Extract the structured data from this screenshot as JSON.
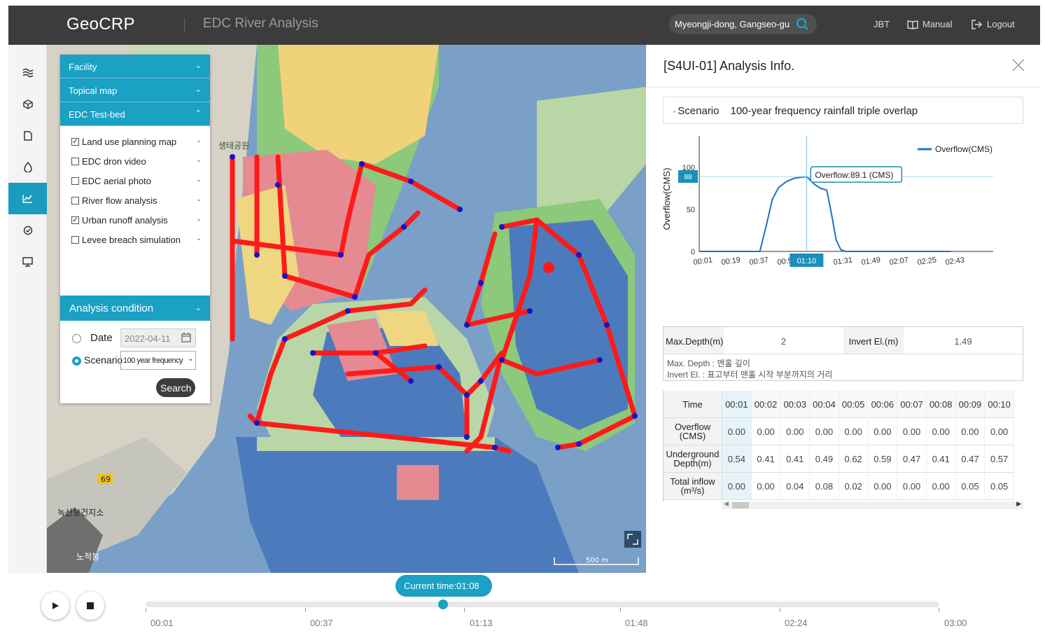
{
  "header": {
    "logo": "GeoCRP",
    "title": "EDC River Analysis",
    "search_value": "Myeongji-dong, Gangseo-gu",
    "user": "JBT",
    "manual": "Manual",
    "logout": "Logout"
  },
  "layers_panel": {
    "sections": [
      "Facility",
      "Topical map",
      "EDC Test-bed"
    ],
    "layers": [
      {
        "label": "Land use planning map",
        "checked": true
      },
      {
        "label": "EDC dron video",
        "checked": false
      },
      {
        "label": "EDC aerial photo",
        "checked": false
      },
      {
        "label": "River flow analysis",
        "checked": false
      },
      {
        "label": "Urban runoff analysis",
        "checked": true
      },
      {
        "label": "Levee breach simulation",
        "checked": false
      }
    ]
  },
  "analysis": {
    "title": "Analysis condition",
    "date_label": "Date",
    "date_value": "2022-04-11",
    "scenario_label": "Scenario",
    "scenario_value": "100 year frequency",
    "selected": "Scenario",
    "search_label": "Search"
  },
  "map": {
    "labels": [
      "생태공원",
      "녹산보건지소",
      "노적봉",
      "69"
    ],
    "scale": "500 m"
  },
  "info": {
    "title": "[S4UI-01] Analysis Info.",
    "scenario_key": "Scenario",
    "scenario_value": "100-year frequency rainfall triple overlap",
    "max_depth_label": "Max.Depth(m)",
    "max_depth_value": "2",
    "invert_label": "Invert El.(m)",
    "invert_value": "1.49",
    "note1": "Max. Depth : 맨홀 깊이",
    "note2": "Invert El. : 표고부터 맨홀 시작 부분까지의 거리"
  },
  "chart_data": {
    "type": "line",
    "title": "",
    "ylabel": "Overflow(CMS)",
    "xlabel": "",
    "legend": "Overflow(CMS)",
    "legend_position": "top-right",
    "ylim": [
      0,
      150
    ],
    "yticks": [
      0,
      50,
      100,
      150
    ],
    "xticks": [
      "00:01",
      "00:19",
      "00:37",
      "00:5",
      "01:10",
      "01:31",
      "01:49",
      "02:07",
      "02:25",
      "02:43"
    ],
    "series": [
      {
        "name": "Overflow(CMS)",
        "color": "#1f72c4",
        "points": [
          [
            1,
            0
          ],
          [
            19,
            0
          ],
          [
            40,
            0
          ],
          [
            44,
            30
          ],
          [
            48,
            62
          ],
          [
            52,
            76
          ],
          [
            57,
            83
          ],
          [
            62,
            87
          ],
          [
            70,
            89.1
          ],
          [
            75,
            80
          ],
          [
            79,
            75
          ],
          [
            83,
            73
          ],
          [
            86,
            45
          ],
          [
            89,
            14
          ],
          [
            92,
            2
          ],
          [
            95,
            0
          ],
          [
            120,
            0
          ],
          [
            163,
            0
          ]
        ]
      }
    ],
    "cursor": {
      "x_label": "01:10",
      "y_label": "88",
      "tooltip": "Overflow:89.1 (CMS)"
    },
    "grid": false
  },
  "time_table": {
    "row_headers": [
      "Time",
      "Overflow (CMS)",
      "Underground Depth(m)",
      "Total inflow (m³/s)"
    ],
    "times": [
      "00:01",
      "00:02",
      "00:03",
      "00:04",
      "00:05",
      "00:06",
      "00:07",
      "00:08",
      "00:09",
      "00:10"
    ],
    "overflow": [
      "0.00",
      "0.00",
      "0.00",
      "0.00",
      "0.00",
      "0.00",
      "0.00",
      "0.00",
      "0.00",
      "0.00"
    ],
    "depth": [
      "0.54",
      "0.41",
      "0.41",
      "0.49",
      "0.62",
      "0.59",
      "0.47",
      "0.41",
      "0.47",
      "0.57"
    ],
    "inflow": [
      "0.00",
      "0.00",
      "0.04",
      "0.08",
      "0.02",
      "0.00",
      "0.00",
      "0.00",
      "0.05",
      "0.05"
    ]
  },
  "timeline": {
    "current": "Current time:01:08",
    "ticks": [
      "00:01",
      "00:37",
      "01:13",
      "01:48",
      "02:24",
      "03:00"
    ],
    "progress": 0.37
  },
  "colors": {
    "accent": "#1aa1c4",
    "topbar": "#3c3c3c",
    "pipe": "#ff1a1a",
    "node": "#1414c8"
  }
}
